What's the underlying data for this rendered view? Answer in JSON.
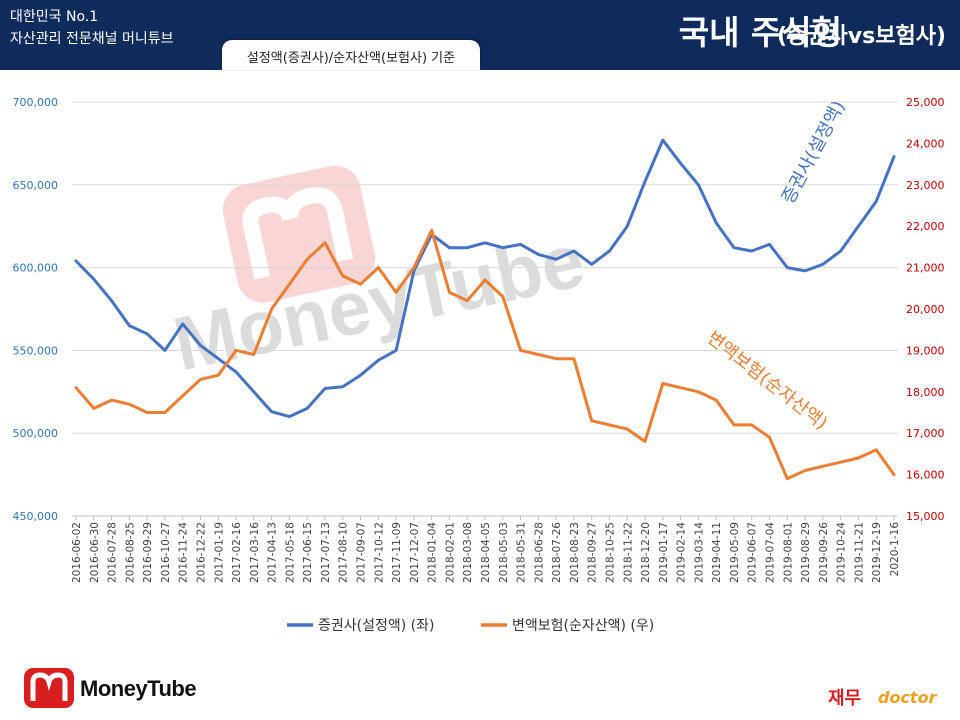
{
  "header": {
    "brand_line1": "대한민국 No.1",
    "brand_line2": "자산관리 전문채널 머니튜브",
    "title": "국내 주식형",
    "subtitle": "(증권사vs보험사)",
    "basis": "설정액(증권사)/순자산액(보험사)  기준"
  },
  "footer": {
    "logo_text": "MoneyTube",
    "watermark_text": "MoneyTube",
    "right_logo_ko": "재무",
    "right_logo_en": "doctor"
  },
  "colors": {
    "header_bg": "#0f2b5b",
    "securities": "#4472c4",
    "insurance": "#ed7d31",
    "left_axis": "#2e75b6",
    "right_axis": "#c00000"
  },
  "chart_data": {
    "type": "line",
    "title": "",
    "x": [
      "2016-06-02",
      "2016-06-30",
      "2016-07-28",
      "2016-08-25",
      "2016-09-29",
      "2016-10-27",
      "2016-11-24",
      "2016-12-22",
      "2017-01-19",
      "2017-02-16",
      "2017-03-16",
      "2017-04-13",
      "2017-05-18",
      "2017-06-15",
      "2017-07-13",
      "2017-08-10",
      "2017-09-07",
      "2017-10-12",
      "2017-11-09",
      "2017-12-07",
      "2018-01-04",
      "2018-02-01",
      "2018-03-08",
      "2018-04-05",
      "2018-05-03",
      "2018-05-31",
      "2018-06-28",
      "2018-07-26",
      "2018-08-23",
      "2018-09-27",
      "2018-10-25",
      "2018-11-22",
      "2018-12-20",
      "2019-01-17",
      "2019-02-14",
      "2019-03-14",
      "2019-04-11",
      "2019-05-09",
      "2019-06-07",
      "2019-07-04",
      "2019-08-01",
      "2019-08-29",
      "2019-09-26",
      "2019-10-24",
      "2019-11-21",
      "2019-12-19",
      "2020-1-16"
    ],
    "left_axis": {
      "ylim": [
        450000,
        700000
      ],
      "ticks": [
        "450,000",
        "500,000",
        "550,000",
        "600,000",
        "650,000",
        "700,000"
      ]
    },
    "right_axis": {
      "ylim": [
        15000,
        25000
      ],
      "ticks": [
        "15,000",
        "16,000",
        "17,000",
        "18,000",
        "19,000",
        "20,000",
        "21,000",
        "22,000",
        "23,000",
        "24,000",
        "25,000"
      ]
    },
    "series": [
      {
        "name": "증권사(설정액) (좌)",
        "annotation": "증권사(설정액)",
        "axis": "left",
        "values": [
          604000,
          593000,
          580000,
          565000,
          560000,
          550000,
          566000,
          553000,
          545000,
          537000,
          525000,
          513000,
          510000,
          515000,
          527000,
          528000,
          535000,
          544000,
          550000,
          598000,
          620000,
          612000,
          612000,
          615000,
          612000,
          614000,
          608000,
          605000,
          610000,
          602000,
          610000,
          625000,
          652000,
          677000,
          663000,
          650000,
          627000,
          612000,
          610000,
          614000,
          600000,
          598000,
          602000,
          610000,
          625000,
          640000,
          667000
        ]
      },
      {
        "name": "변액보험(순자산액) (우)",
        "annotation": "변액보험(순자산액)",
        "axis": "right",
        "values": [
          18100,
          17600,
          17800,
          17700,
          17500,
          17500,
          17900,
          18300,
          18400,
          19000,
          18900,
          20000,
          20600,
          21200,
          21600,
          20800,
          20600,
          21000,
          20400,
          21000,
          21900,
          20400,
          20200,
          20700,
          20300,
          19000,
          18900,
          18800,
          18800,
          17300,
          17200,
          17100,
          16800,
          18200,
          18100,
          18000,
          17800,
          17200,
          17200,
          16900,
          15900,
          16100,
          16200,
          16300,
          16400,
          16600,
          16000
        ]
      }
    ],
    "legend": "bottom"
  }
}
